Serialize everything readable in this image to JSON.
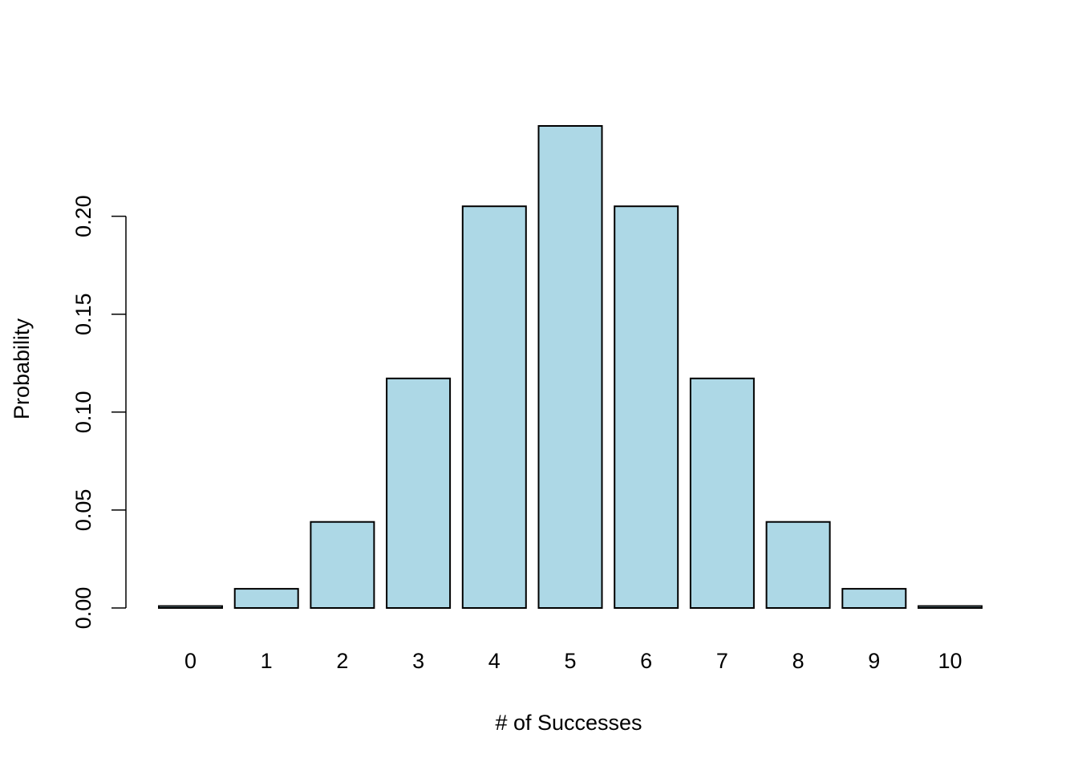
{
  "chart_data": {
    "type": "bar",
    "title": "",
    "xlabel": "# of Successes",
    "ylabel": "Probability",
    "categories": [
      "0",
      "1",
      "2",
      "3",
      "4",
      "5",
      "6",
      "7",
      "8",
      "9",
      "10"
    ],
    "values": [
      0.000977,
      0.009766,
      0.043945,
      0.117188,
      0.205078,
      0.246094,
      0.205078,
      0.117188,
      0.043945,
      0.009766,
      0.000977
    ],
    "ylim": [
      0,
      0.246094
    ],
    "yticks": [
      0,
      0.05,
      0.1,
      0.15,
      0.2
    ],
    "ytick_labels": [
      "0.00",
      "0.05",
      "0.10",
      "0.15",
      "0.20"
    ],
    "grid": false,
    "colors": {
      "bar_fill": "#add8e6",
      "bar_stroke": "#000000"
    }
  }
}
